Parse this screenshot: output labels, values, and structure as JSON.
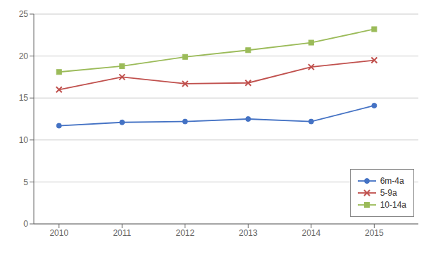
{
  "chart_data": {
    "type": "line",
    "x": [
      2010,
      2011,
      2012,
      2013,
      2014,
      2015
    ],
    "series": [
      {
        "name": "6m-4a",
        "color": "#4472C4",
        "marker": "circle",
        "values": [
          11.7,
          12.1,
          12.2,
          12.5,
          12.2,
          14.1
        ]
      },
      {
        "name": "5-9a",
        "color": "#C0504D",
        "marker": "x",
        "values": [
          16.0,
          17.5,
          16.7,
          16.8,
          18.7,
          19.5
        ]
      },
      {
        "name": "10-14a",
        "color": "#9BBB59",
        "marker": "square",
        "values": [
          18.1,
          18.8,
          19.9,
          20.7,
          21.6,
          23.2
        ]
      }
    ],
    "xlim": [
      2009.6,
      2015.7
    ],
    "xticks": [
      2010,
      2011,
      2012,
      2013,
      2014,
      2015
    ],
    "ylim": [
      0,
      25
    ],
    "yticks": [
      0,
      5,
      10,
      15,
      20,
      25
    ],
    "grid": true,
    "legend": "lower right"
  }
}
